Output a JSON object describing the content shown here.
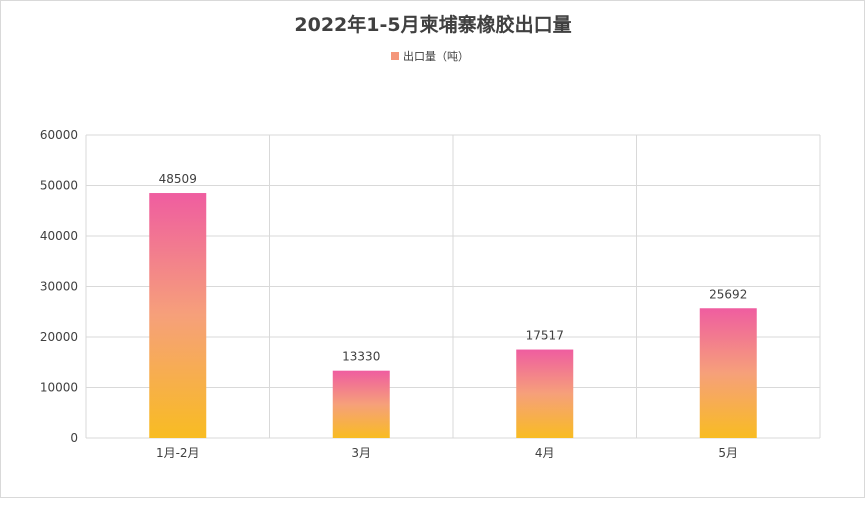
{
  "chart_data": {
    "type": "bar",
    "title": "2022年1-5月柬埔寨橡胶出口量",
    "legend_position": "top-center",
    "grid": true,
    "categories": [
      "1月-2月",
      "3月",
      "4月",
      "5月"
    ],
    "series": [
      {
        "name": "出口量（吨）",
        "values": [
          48509,
          13330,
          17517,
          25692
        ]
      }
    ],
    "y_ticks": [
      "0",
      "10000",
      "20000",
      "30000",
      "40000",
      "50000",
      "60000"
    ],
    "ylim": [
      0,
      60000
    ],
    "data_labels": [
      "48509",
      "13330",
      "17517",
      "25692"
    ],
    "colors": {
      "bar_top": "#EF5DA0",
      "bar_mid": "#F6A07A",
      "bar_bottom": "#F8BC22",
      "legend_swatch": "#F4967A",
      "grid": "#d9d9d9",
      "text": "#404040",
      "title": "#404040"
    }
  }
}
